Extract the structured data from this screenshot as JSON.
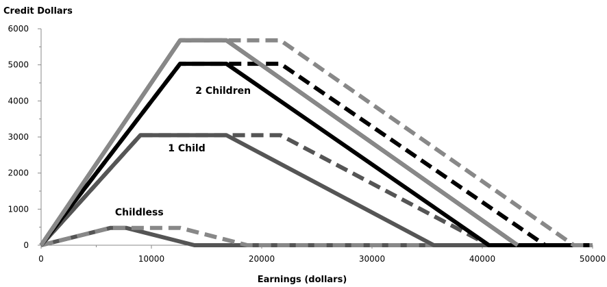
{
  "chart_data": {
    "type": "line",
    "title": "",
    "ylabel": "Credit Dollars",
    "xlabel": "Earnings (dollars)",
    "xlim": [
      0,
      50000
    ],
    "ylim": [
      0,
      6000
    ],
    "xticks": [
      0,
      10000,
      20000,
      30000,
      40000,
      50000
    ],
    "yticks": [
      0,
      1000,
      2000,
      3000,
      4000,
      5000,
      6000
    ],
    "grid": false,
    "annotations": [
      {
        "text": "2 Children",
        "x": 16500,
        "y": 4200
      },
      {
        "text": "1 Child",
        "x": 13200,
        "y": 2600
      },
      {
        "text": "Childless",
        "x": 8900,
        "y": 830
      }
    ],
    "series": [
      {
        "color": "#555555",
        "dash": "solid",
        "points": [
          [
            0,
            0
          ],
          [
            6300,
            480
          ],
          [
            7700,
            480
          ],
          [
            13900,
            0
          ],
          [
            50000,
            0
          ]
        ]
      },
      {
        "color": "#888888",
        "dash": "dashed",
        "points": [
          [
            0,
            0
          ],
          [
            6300,
            480
          ],
          [
            12600,
            480
          ],
          [
            18700,
            0
          ],
          [
            50000,
            0
          ]
        ]
      },
      {
        "color": "#555555",
        "dash": "solid",
        "points": [
          [
            0,
            0
          ],
          [
            9000,
            3050
          ],
          [
            16800,
            3050
          ],
          [
            35600,
            0
          ],
          [
            50000,
            0
          ]
        ]
      },
      {
        "color": "#555555",
        "dash": "dashed",
        "points": [
          [
            0,
            0
          ],
          [
            9000,
            3050
          ],
          [
            21700,
            3050
          ],
          [
            40600,
            0
          ],
          [
            50000,
            0
          ]
        ]
      },
      {
        "color": "#000000",
        "dash": "solid",
        "points": [
          [
            0,
            0
          ],
          [
            12600,
            5030
          ],
          [
            16800,
            5030
          ],
          [
            40600,
            0
          ],
          [
            50000,
            0
          ]
        ]
      },
      {
        "color": "#000000",
        "dash": "dashed",
        "points": [
          [
            0,
            0
          ],
          [
            12600,
            5030
          ],
          [
            21700,
            5030
          ],
          [
            45700,
            0
          ],
          [
            50000,
            0
          ]
        ]
      },
      {
        "color": "#000000",
        "dash": "solid",
        "points": [
          [
            0,
            0
          ],
          [
            12600,
            5680
          ],
          [
            16800,
            5680
          ],
          [
            43200,
            0
          ],
          [
            50000,
            0
          ]
        ]
      },
      {
        "color": "#888888",
        "dash": "dashed",
        "points": [
          [
            0,
            0
          ],
          [
            12600,
            5680
          ],
          [
            16800,
            5680
          ]
        ]
      },
      {
        "color": "#888888",
        "dash": "solid",
        "points": [
          [
            0,
            0
          ],
          [
            12600,
            5680
          ],
          [
            16800,
            5680
          ],
          [
            43200,
            0
          ]
        ]
      },
      {
        "color": "#888888",
        "dash": "dashed",
        "points": [
          [
            0,
            0
          ],
          [
            12600,
            5680
          ],
          [
            21700,
            5680
          ],
          [
            48300,
            0
          ],
          [
            50000,
            0
          ]
        ]
      }
    ]
  }
}
